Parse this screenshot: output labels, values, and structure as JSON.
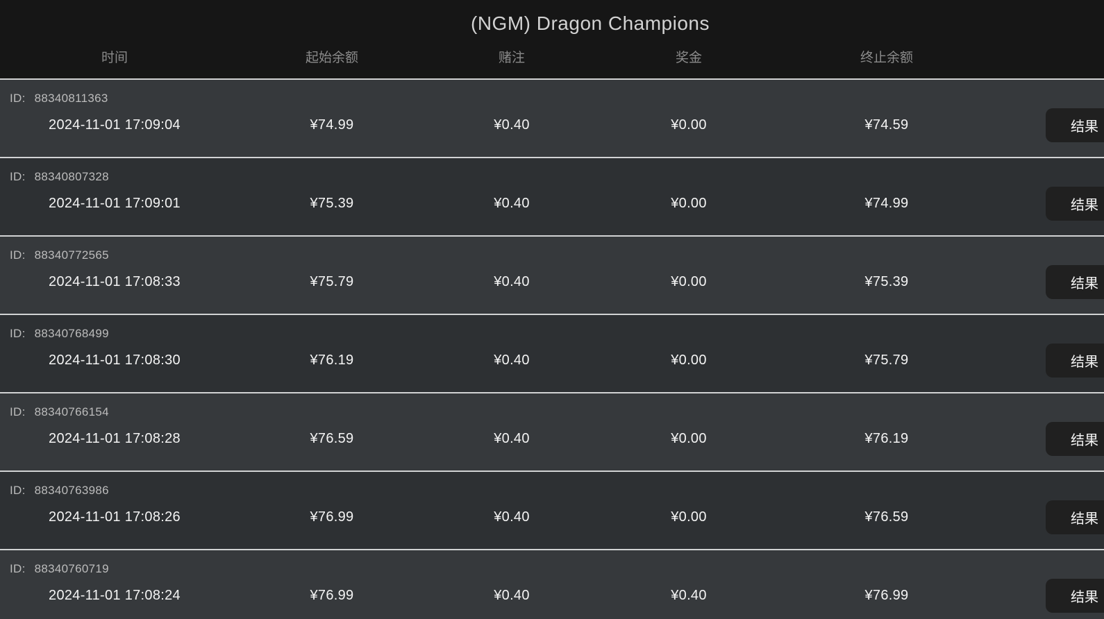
{
  "header": {
    "title": "(NGM) Dragon Champions"
  },
  "table": {
    "columns": [
      {
        "key": "time",
        "label": "时间"
      },
      {
        "key": "start_balance",
        "label": "起始余额"
      },
      {
        "key": "bet",
        "label": "赌注"
      },
      {
        "key": "prize",
        "label": "奖金"
      },
      {
        "key": "end_balance",
        "label": "终止余额"
      }
    ],
    "id_label": "ID:",
    "result_button_label": "结果",
    "rows": [
      {
        "id": "88340811363",
        "time": "2024-11-01 17:09:04",
        "start_balance": "¥74.99",
        "bet": "¥0.40",
        "prize": "¥0.00",
        "end_balance": "¥74.59"
      },
      {
        "id": "88340807328",
        "time": "2024-11-01 17:09:01",
        "start_balance": "¥75.39",
        "bet": "¥0.40",
        "prize": "¥0.00",
        "end_balance": "¥74.99"
      },
      {
        "id": "88340772565",
        "time": "2024-11-01 17:08:33",
        "start_balance": "¥75.79",
        "bet": "¥0.40",
        "prize": "¥0.00",
        "end_balance": "¥75.39"
      },
      {
        "id": "88340768499",
        "time": "2024-11-01 17:08:30",
        "start_balance": "¥76.19",
        "bet": "¥0.40",
        "prize": "¥0.00",
        "end_balance": "¥75.79"
      },
      {
        "id": "88340766154",
        "time": "2024-11-01 17:08:28",
        "start_balance": "¥76.59",
        "bet": "¥0.40",
        "prize": "¥0.00",
        "end_balance": "¥76.19"
      },
      {
        "id": "88340763986",
        "time": "2024-11-01 17:08:26",
        "start_balance": "¥76.99",
        "bet": "¥0.40",
        "prize": "¥0.00",
        "end_balance": "¥76.59"
      },
      {
        "id": "88340760719",
        "time": "2024-11-01 17:08:24",
        "start_balance": "¥76.99",
        "bet": "¥0.40",
        "prize": "¥0.40",
        "end_balance": "¥76.99"
      }
    ]
  },
  "colors": {
    "header_background": "#161616",
    "row_background_light": "#36393c",
    "row_background_dark": "#2d3033",
    "row_separator": "#d2d3d4",
    "title_text": "#d2d2d2",
    "column_header_text": "#8b8b8b",
    "id_text": "#bcbcbc",
    "value_text": "#f4f4f4",
    "button_background": "#202020",
    "button_text": "#f2f2f2"
  }
}
